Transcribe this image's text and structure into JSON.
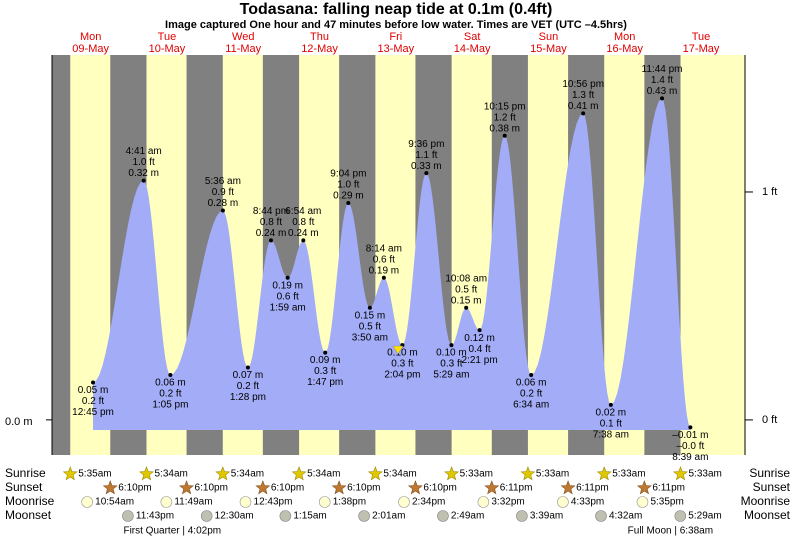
{
  "chart_data": {
    "type": "tide",
    "title": "Todasana: falling  neap tide at 0.1m (0.4ft)",
    "subtitle": "Image captured One hour and 47 minutes before low water. Times are VET (UTC –4.5hrs)",
    "ylim": [
      -0.047,
      0.488
    ],
    "yticks": [
      {
        "value": 0,
        "label": "0.0 m"
      }
    ],
    "y2lim": [
      -0.154,
      1.601
    ],
    "y2ticks": [
      {
        "value": 0,
        "label": "0 ft"
      },
      {
        "value": 1,
        "label": "1 ft"
      }
    ],
    "color": "#a2acf7",
    "day_color": "#ffffc0",
    "night_color": "#808080",
    "row_labels": [
      "Sunrise",
      "Sunset",
      "Moonrise",
      "Moonset"
    ],
    "days": [
      {
        "name": "Mon",
        "date": "09-May",
        "sunrise": "5:35am",
        "sunset": "6:10pm",
        "moonrise": "10:54am",
        "moonset": "11:43pm",
        "phase": "First Quarter | 4:02pm",
        "tides": [
          {
            "time": "12:45 pm",
            "m": 0.05,
            "m_label": "0.05 m",
            "ft_label": "0.2 ft"
          }
        ]
      },
      {
        "name": "Tue",
        "date": "10-May",
        "sunrise": "5:34am",
        "sunset": "6:10pm",
        "moonrise": "11:49am",
        "moonset": null,
        "tides": [
          {
            "time": "4:41 am",
            "m": 0.32,
            "m_label": "0.32 m",
            "ft_label": "1.0 ft"
          },
          {
            "time": "1:05 pm",
            "m": 0.06,
            "m_label": "0.06 m",
            "ft_label": "0.2 ft"
          }
        ]
      },
      {
        "name": "Wed",
        "date": "11-May",
        "sunrise": "5:34am",
        "sunset": "6:10pm",
        "moonrise": "12:43pm",
        "moonset": "12:30am",
        "tides": [
          {
            "time": "5:36 am",
            "m": 0.28,
            "m_label": "0.28 m",
            "ft_label": "0.9 ft"
          },
          {
            "time": "1:28 pm",
            "m": 0.07,
            "m_label": "0.07 m",
            "ft_label": "0.2 ft"
          },
          {
            "time": "8:44 pm",
            "m": 0.24,
            "m_label": "0.24 m",
            "ft_label": "0.8 ft"
          }
        ]
      },
      {
        "name": "Thu",
        "date": "12-May",
        "sunrise": "5:34am",
        "sunset": "6:10pm",
        "moonrise": "1:38pm",
        "moonset": "1:15am",
        "tides": [
          {
            "time": "1:59 am",
            "m": 0.19,
            "m_label": "0.19 m",
            "ft_label": "0.6 ft"
          },
          {
            "time": "6:54 am",
            "m": 0.24,
            "m_label": "0.24 m",
            "ft_label": "0.8 ft"
          },
          {
            "time": "1:47 pm",
            "m": 0.09,
            "m_label": "0.09 m",
            "ft_label": "0.3 ft"
          },
          {
            "time": "9:04 pm",
            "m": 0.29,
            "m_label": "0.29 m",
            "ft_label": "1.0 ft"
          }
        ]
      },
      {
        "name": "Fri",
        "date": "13-May",
        "sunrise": "5:34am",
        "sunset": "6:10pm",
        "moonrise": "2:34pm",
        "moonset": "2:01am",
        "tides": [
          {
            "time": "3:50 am",
            "m": 0.15,
            "m_label": "0.15 m",
            "ft_label": "0.5 ft"
          },
          {
            "time": "8:14 am",
            "m": 0.19,
            "m_label": "0.19 m",
            "ft_label": "0.6 ft"
          },
          {
            "time": "2:04 pm",
            "m": 0.1,
            "m_label": "0.10 m",
            "ft_label": "0.3 ft"
          },
          {
            "time": "9:36 pm",
            "m": 0.33,
            "m_label": "0.33 m",
            "ft_label": "1.1 ft"
          }
        ]
      },
      {
        "name": "Sat",
        "date": "14-May",
        "sunrise": "5:33am",
        "sunset": "6:11pm",
        "moonrise": "3:32pm",
        "moonset": "2:49am",
        "tides": [
          {
            "time": "5:29 am",
            "m": 0.1,
            "m_label": "0.10 m",
            "ft_label": "0.3 ft"
          },
          {
            "time": "10:08 am",
            "m": 0.15,
            "m_label": "0.15 m",
            "ft_label": "0.5 ft"
          },
          {
            "time": "2:21 pm",
            "m": 0.12,
            "m_label": "0.12 m",
            "ft_label": "0.4 ft"
          },
          {
            "time": "10:15 pm",
            "m": 0.38,
            "m_label": "0.38 m",
            "ft_label": "1.2 ft"
          }
        ]
      },
      {
        "name": "Sun",
        "date": "15-May",
        "sunrise": "5:33am",
        "sunset": "6:11pm",
        "moonrise": "4:33pm",
        "moonset": "3:39am",
        "tides": [
          {
            "time": "6:34 am",
            "m": 0.06,
            "m_label": "0.06 m",
            "ft_label": "0.2 ft"
          },
          {
            "time": "10:56 pm",
            "m": 0.41,
            "m_label": "0.41 m",
            "ft_label": "1.3 ft"
          }
        ]
      },
      {
        "name": "Mon",
        "date": "16-May",
        "sunrise": "5:33am",
        "sunset": "6:11pm",
        "moonrise": "5:35pm",
        "moonset": "4:32am",
        "phase": "Full Moon | 6:38am",
        "tides": [
          {
            "time": "7:38 am",
            "m": 0.02,
            "m_label": "0.02 m",
            "ft_label": "0.1 ft"
          },
          {
            "time": "11:44 pm",
            "m": 0.43,
            "m_label": "0.43 m",
            "ft_label": "1.4 ft"
          }
        ]
      },
      {
        "name": "Tue",
        "date": "17-May",
        "sunrise": "5:33am",
        "sunset": null,
        "moonrise": null,
        "moonset": "5:29am",
        "tides": [
          {
            "time": "8:39 am",
            "m": -0.01,
            "m_label": "–0.01 m",
            "ft_label": "–0.0 ft"
          }
        ]
      }
    ]
  }
}
